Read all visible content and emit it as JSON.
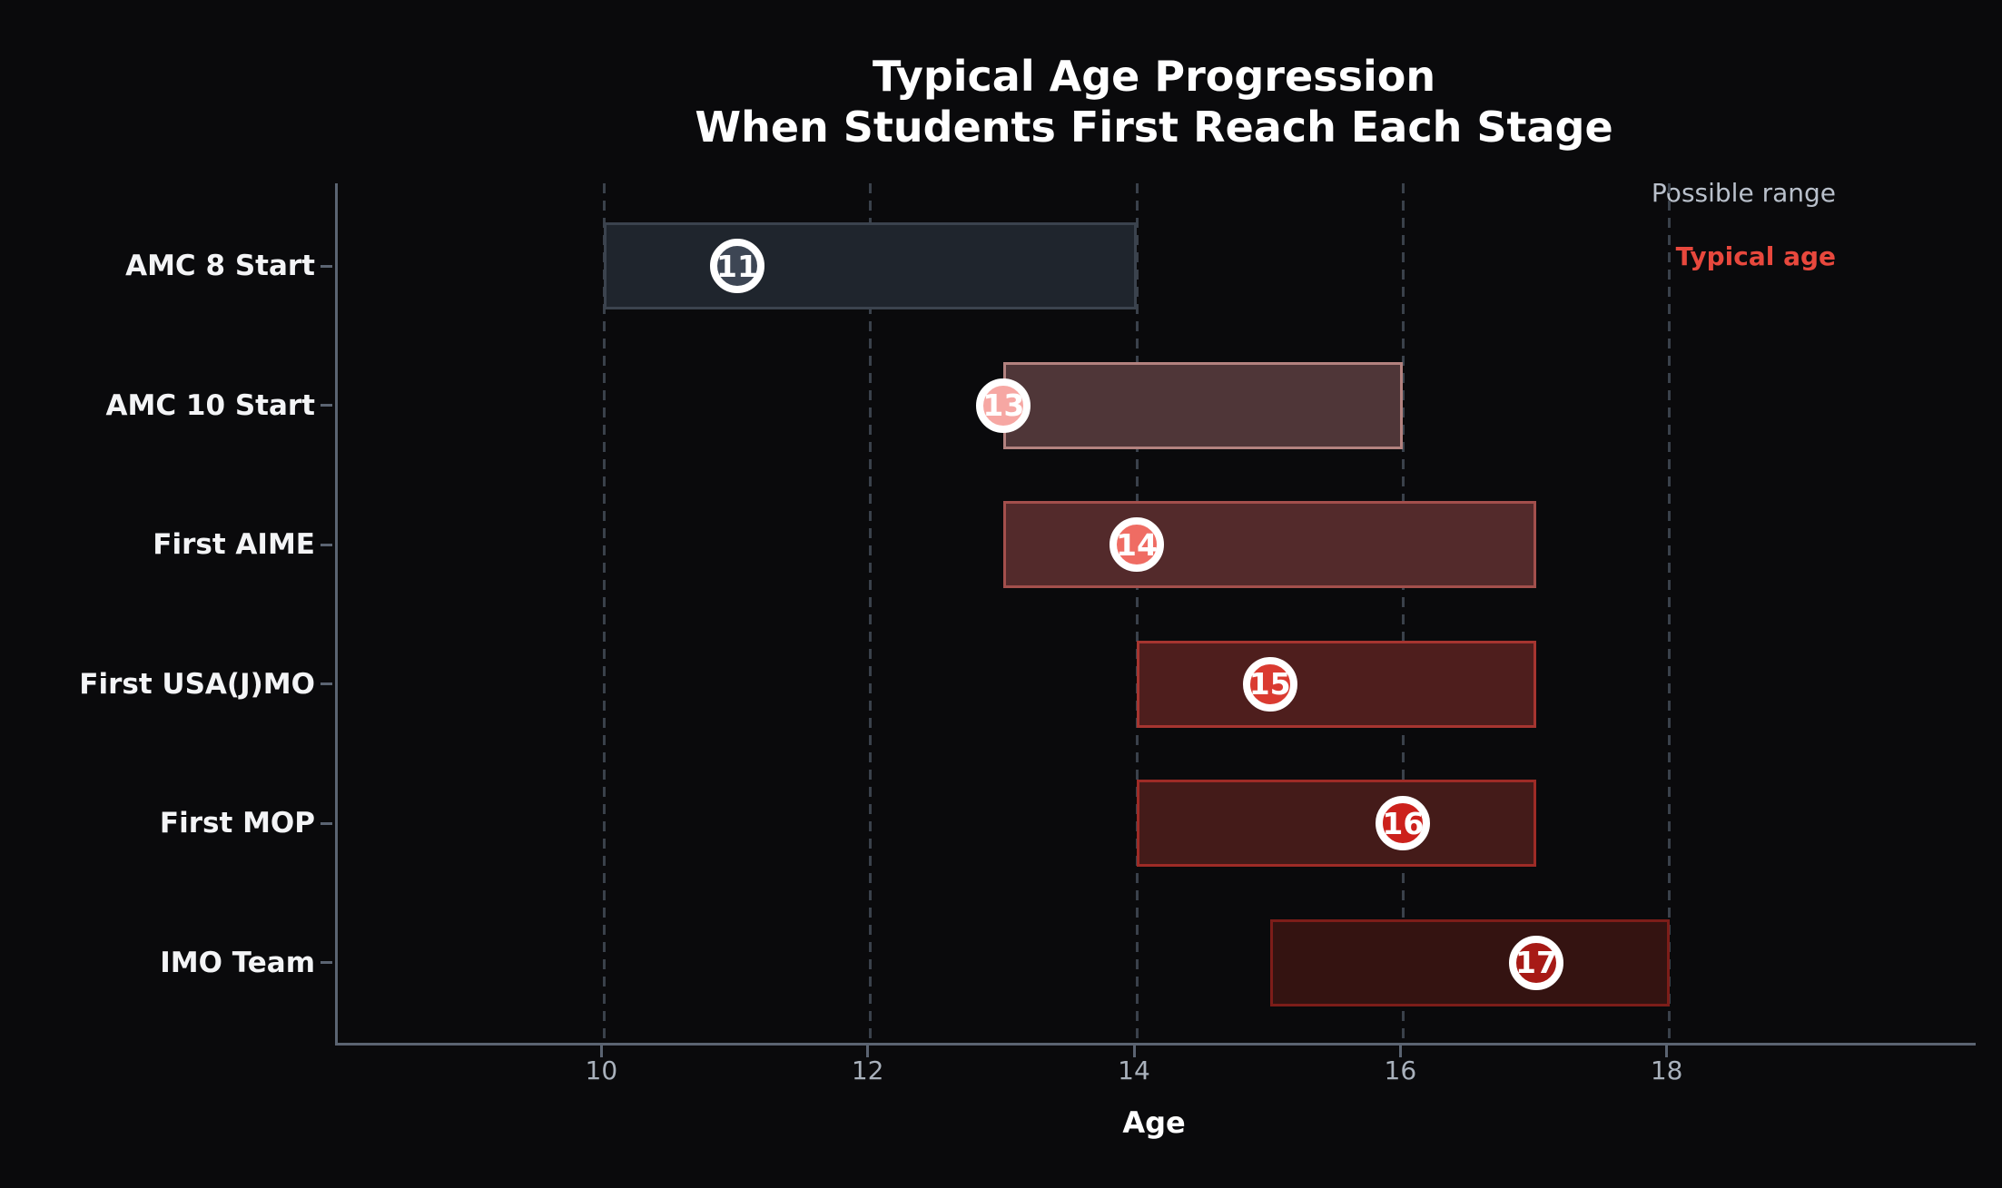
{
  "title": {
    "line1": "Typical Age Progression",
    "line2": "When Students First Reach Each Stage"
  },
  "legend": {
    "possible_range_label": "Possible range",
    "typical_age_label": "Typical age",
    "possible_range_color": "#b9c0cb",
    "typical_age_color": "#e8483d"
  },
  "axis": {
    "xlabel": "Age",
    "x_ticks": [
      10,
      12,
      14,
      16,
      18
    ],
    "xlim": [
      8,
      20.3
    ]
  },
  "colors": {
    "background": "#0a0a0c",
    "spine": "#5b6472",
    "gridline": "#3a414b",
    "tick_label": "#a9b1bc",
    "title_text": "#ffffff",
    "marker_ring": "#ffffff",
    "marker_number": "#ffffff"
  },
  "chart_data": {
    "type": "bar",
    "subtype": "horizontal-range-bars-with-point-markers",
    "title": "Typical Age Progression When Students First Reach Each Stage",
    "xlabel": "Age",
    "xlim": [
      8,
      20.3
    ],
    "grid": "vertical-dashed",
    "legend_position": "top-right",
    "categories": [
      "AMC 8 Start",
      "AMC 10 Start",
      "First AIME",
      "First USA(J)MO",
      "First MOP",
      "IMO Team"
    ],
    "series": [
      {
        "name": "Possible range",
        "ranges": [
          [
            10,
            14
          ],
          [
            13,
            16
          ],
          [
            13,
            17
          ],
          [
            14,
            17
          ],
          [
            14,
            17
          ],
          [
            15,
            18
          ]
        ]
      },
      {
        "name": "Typical age",
        "values": [
          11,
          13,
          14,
          15,
          16,
          17
        ]
      }
    ],
    "rows": [
      {
        "label": "AMC 8 Start",
        "range_min": 10,
        "range_max": 14,
        "typical": 11,
        "bar_fill": "#1f252d",
        "bar_edge": "#3b434e",
        "marker_fill": "#3d4654"
      },
      {
        "label": "AMC 10 Start",
        "range_min": 13,
        "range_max": 16,
        "typical": 13,
        "bar_fill": "#4f3638",
        "bar_edge": "#b3827f",
        "marker_fill": "#f6a7a3"
      },
      {
        "label": "First AIME",
        "range_min": 13,
        "range_max": 17,
        "typical": 14,
        "bar_fill": "#532a2b",
        "bar_edge": "#a34f4c",
        "marker_fill": "#ef6c63"
      },
      {
        "label": "First USA(J)MO",
        "range_min": 14,
        "range_max": 17,
        "typical": 15,
        "bar_fill": "#4e1e1d",
        "bar_edge": "#a63530",
        "marker_fill": "#da3b31"
      },
      {
        "label": "First MOP",
        "range_min": 14,
        "range_max": 17,
        "typical": 16,
        "bar_fill": "#441b19",
        "bar_edge": "#9e2b26",
        "marker_fill": "#cc211c"
      },
      {
        "label": "IMO Team",
        "range_min": 15,
        "range_max": 18,
        "typical": 17,
        "bar_fill": "#341311",
        "bar_edge": "#7d1d19",
        "marker_fill": "#a71a16"
      }
    ]
  }
}
